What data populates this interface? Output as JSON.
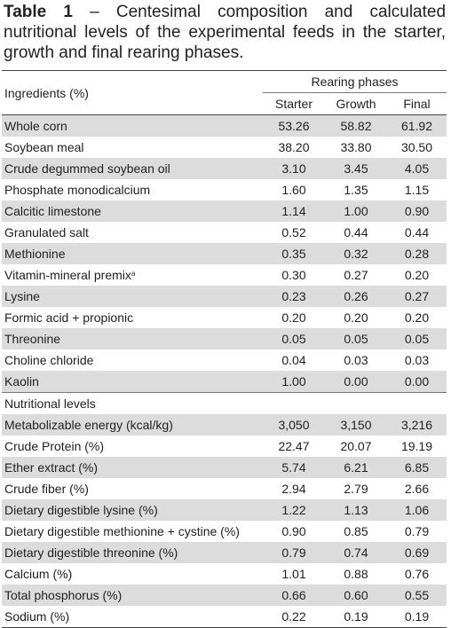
{
  "caption": {
    "label": "Table 1",
    "dash": "–",
    "text": "Centesimal composition and calculated nutritional levels of the experimental feeds in the starter, growth and final rearing phases."
  },
  "header": {
    "ingredients_label": "Ingredients (%)",
    "group_label": "Rearing phases",
    "columns": [
      "Starter",
      "Growth",
      "Final"
    ]
  },
  "ingredients": [
    {
      "name": "Whole corn",
      "values": [
        "53.26",
        "58.82",
        "61.92"
      ]
    },
    {
      "name": "Soybean meal",
      "values": [
        "38.20",
        "33.80",
        "30.50"
      ]
    },
    {
      "name": "Crude degummed soybean oil",
      "values": [
        "3.10",
        "3.45",
        "4.05"
      ]
    },
    {
      "name": "Phosphate monodicalcium",
      "values": [
        "1.60",
        "1.35",
        "1.15"
      ]
    },
    {
      "name": "Calcitic limestone",
      "values": [
        "1.14",
        "1.00",
        "0.90"
      ]
    },
    {
      "name": "Granulated salt",
      "values": [
        "0.52",
        "0.44",
        "0.44"
      ]
    },
    {
      "name": "Methionine",
      "values": [
        "0.35",
        "0.32",
        "0.28"
      ]
    },
    {
      "name": "Vitamin-mineral premix",
      "sup": "a",
      "values": [
        "0.30",
        "0.27",
        "0.20"
      ]
    },
    {
      "name": "Lysine",
      "values": [
        "0.23",
        "0.26",
        "0.27"
      ]
    },
    {
      "name": "Formic acid + propionic",
      "values": [
        "0.20",
        "0.20",
        "0.20"
      ]
    },
    {
      "name": "Threonine",
      "values": [
        "0.05",
        "0.05",
        "0.05"
      ]
    },
    {
      "name": "Choline chloride",
      "values": [
        "0.04",
        "0.03",
        "0.03"
      ]
    },
    {
      "name": "Kaolin",
      "values": [
        "1.00",
        "0.00",
        "0.00"
      ]
    }
  ],
  "nutritional_label": "Nutritional levels",
  "nutritional": [
    {
      "name": "Metabolizable energy (kcal/kg)",
      "values": [
        "3,050",
        "3,150",
        "3,216"
      ]
    },
    {
      "name": "Crude Protein (%)",
      "values": [
        "22.47",
        "20.07",
        "19.19"
      ]
    },
    {
      "name": "Ether extract (%)",
      "values": [
        "5.74",
        "6.21",
        "6.85"
      ]
    },
    {
      "name": "Crude fiber (%)",
      "values": [
        "2.94",
        "2.79",
        "2.66"
      ]
    },
    {
      "name": "Dietary digestible lysine (%)",
      "values": [
        "1.22",
        "1.13",
        "1.06"
      ]
    },
    {
      "name": "Dietary digestible methionine + cystine (%)",
      "values": [
        "0.90",
        "0.85",
        "0.79"
      ]
    },
    {
      "name": "Dietary digestible threonine (%)",
      "values": [
        "0.79",
        "0.74",
        "0.69"
      ]
    },
    {
      "name": "Calcium (%)",
      "values": [
        "1.01",
        "0.88",
        "0.76"
      ]
    },
    {
      "name": "Total phosphorus (%)",
      "values": [
        "0.66",
        "0.60",
        "0.55"
      ]
    },
    {
      "name": "Sodium (%)",
      "values": [
        "0.22",
        "0.19",
        "0.19"
      ]
    }
  ]
}
